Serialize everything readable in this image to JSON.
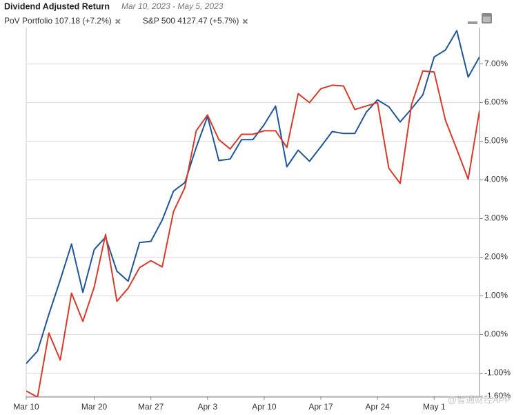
{
  "chart_data": {
    "type": "line",
    "title": "Dividend Adjusted Return",
    "subtitle": "Mar 10, 2023 - May 5, 2023",
    "watermark": "@智通财经APP",
    "categories": [
      "Mar 10",
      null,
      null,
      null,
      null,
      null,
      "Mar 20",
      null,
      null,
      null,
      null,
      "Mar 27",
      null,
      null,
      null,
      null,
      "Apr 3",
      null,
      null,
      null,
      null,
      "Apr 10",
      null,
      null,
      null,
      null,
      "Apr 17",
      null,
      null,
      null,
      null,
      "Apr 24",
      null,
      null,
      null,
      null,
      "May 1",
      null,
      null,
      null,
      null
    ],
    "series": [
      {
        "name": "PoV Portfolio 107.18 (+7.2%)",
        "color": "#1f5596",
        "values": [
          -0.75,
          -0.43,
          0.52,
          1.41,
          2.34,
          1.09,
          2.2,
          2.52,
          1.64,
          1.38,
          2.38,
          2.41,
          2.96,
          3.71,
          3.93,
          4.84,
          5.64,
          4.5,
          4.54,
          5.04,
          5.04,
          5.43,
          5.91,
          4.34,
          4.77,
          4.48,
          4.86,
          5.25,
          5.2,
          5.2,
          5.75,
          6.07,
          5.89,
          5.5,
          5.84,
          6.2,
          7.18,
          7.36,
          7.86,
          6.66,
          7.18
        ]
      },
      {
        "name": "S&P 500 4127.47 (+5.7%)",
        "color": "#d63a2a",
        "values": [
          -1.46,
          -1.62,
          0.04,
          -0.66,
          1.07,
          0.34,
          1.23,
          2.59,
          0.86,
          1.2,
          1.73,
          1.91,
          1.75,
          3.18,
          3.8,
          5.27,
          5.68,
          5.04,
          4.8,
          5.18,
          5.18,
          5.27,
          5.27,
          4.84,
          6.23,
          6.0,
          6.36,
          6.45,
          6.43,
          5.82,
          5.91,
          6.0,
          4.3,
          3.91,
          5.95,
          6.82,
          6.79,
          5.54,
          4.79,
          4.02,
          5.79
        ]
      }
    ],
    "ylim": [
      -1.6,
      7.85
    ],
    "yticks": [
      {
        "value": -1.6,
        "label": "-1.60%"
      },
      {
        "value": -1,
        "label": "-1.00%"
      },
      {
        "value": 0,
        "label": "0.00%"
      },
      {
        "value": 1,
        "label": "1.00%"
      },
      {
        "value": 2,
        "label": "2.00%"
      },
      {
        "value": 3,
        "label": "3.00%"
      },
      {
        "value": 4,
        "label": "4.00%"
      },
      {
        "value": 5,
        "label": "5.00%"
      },
      {
        "value": 6,
        "label": "6.00%"
      },
      {
        "value": 7,
        "label": "7.00%"
      }
    ],
    "grid": true
  }
}
